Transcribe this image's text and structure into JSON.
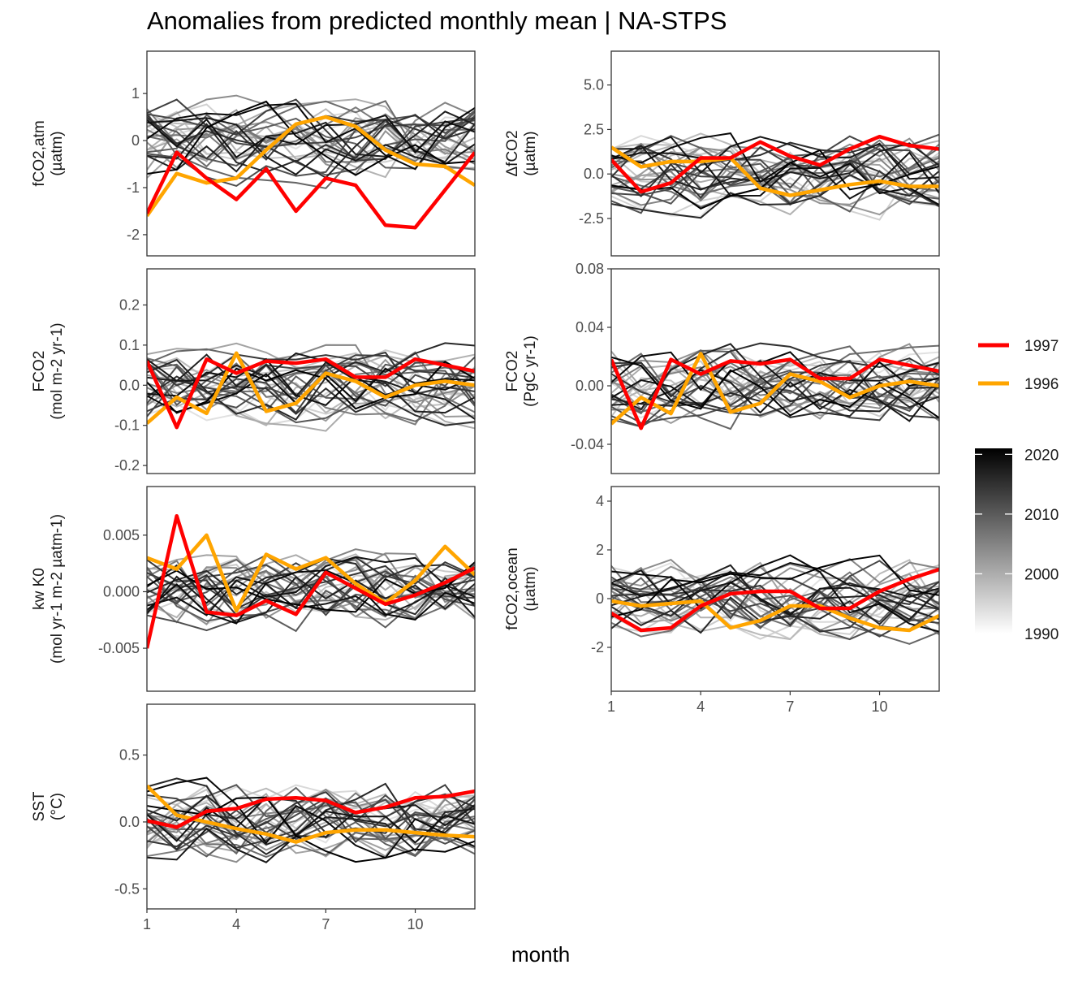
{
  "chart_data": {
    "title": "Anomalies from predicted monthly mean | NA-STPS",
    "xlabel": "month",
    "x_ticks": [
      1,
      4,
      7,
      10
    ],
    "xlim": [
      1,
      12
    ],
    "legend": {
      "highlight": [
        {
          "name": "1997",
          "color": "#ff0000"
        },
        {
          "name": "1996",
          "color": "#ffa500"
        }
      ],
      "colorbar": {
        "ticks": [
          1990,
          2000,
          2010,
          2020
        ],
        "range": [
          1990,
          2021
        ],
        "low_color": "#ffffff",
        "high_color": "#000000"
      }
    },
    "panels": [
      {
        "ylabel_lines": [
          "fCO2,atm",
          "(µatm)"
        ],
        "ticks": [
          "1",
          "0",
          "-1",
          "-2"
        ],
        "tick_values": [
          1,
          0,
          -1,
          -2
        ],
        "ylim": [
          -2.45,
          1.9
        ],
        "series_1997": [
          -1.55,
          -0.25,
          -0.8,
          -1.25,
          -0.6,
          -1.5,
          -0.8,
          -0.95,
          -1.8,
          -1.85,
          -1.05,
          -0.25
        ],
        "series_1996": [
          -1.6,
          -0.7,
          -0.9,
          -0.8,
          -0.2,
          0.35,
          0.5,
          0.3,
          -0.2,
          -0.5,
          -0.55,
          -0.95
        ]
      },
      {
        "ylabel_lines": [
          "ΔfCO2",
          "(µatm)"
        ],
        "ticks": [
          "5.0",
          "2.5",
          "0.0",
          "-2.5"
        ],
        "tick_values": [
          5,
          2.5,
          0,
          -2.5
        ],
        "ylim": [
          -4.6,
          6.9
        ],
        "series_1997": [
          0.8,
          -1.0,
          -0.5,
          0.9,
          0.9,
          1.8,
          1.0,
          0.5,
          1.4,
          2.1,
          1.6,
          1.4
        ],
        "series_1996": [
          1.5,
          0.4,
          0.7,
          0.7,
          0.9,
          -0.8,
          -1.2,
          -0.9,
          -0.6,
          -0.4,
          -0.7,
          -0.7
        ]
      },
      {
        "ylabel_lines": [
          "FCO2",
          "(mol m-2 yr-1)"
        ],
        "ticks": [
          "0.2",
          "0.1",
          "0.0",
          "-0.1",
          "-0.2"
        ],
        "tick_values": [
          0.2,
          0.1,
          0,
          -0.1,
          -0.2
        ],
        "ylim": [
          -0.22,
          0.29
        ],
        "series_1997": [
          0.06,
          -0.105,
          0.065,
          0.03,
          0.06,
          0.055,
          0.065,
          0.02,
          0.02,
          0.065,
          0.05,
          0.035
        ],
        "series_1996": [
          -0.095,
          -0.03,
          -0.07,
          0.08,
          -0.065,
          -0.045,
          0.03,
          0.01,
          -0.03,
          0.0,
          0.01,
          0.0
        ]
      },
      {
        "ylabel_lines": [
          "FCO2",
          "(PgC yr-1)"
        ],
        "ticks": [
          "0.08",
          "0.04",
          "0.00",
          "-0.04"
        ],
        "tick_values": [
          0.08,
          0.04,
          0,
          -0.04
        ],
        "ylim": [
          -0.06,
          0.08
        ],
        "series_1997": [
          0.018,
          -0.029,
          0.018,
          0.008,
          0.017,
          0.015,
          0.018,
          0.005,
          0.005,
          0.018,
          0.014,
          0.01
        ],
        "series_1996": [
          -0.026,
          -0.008,
          -0.019,
          0.022,
          -0.018,
          -0.012,
          0.008,
          0.003,
          -0.008,
          0.0,
          0.003,
          0.0
        ]
      },
      {
        "ylabel_lines": [
          "kw K0",
          "(mol yr-1 m-2 µatm-1)"
        ],
        "ticks": [
          "0.005",
          "0.000",
          "-0.005"
        ],
        "tick_values": [
          0.005,
          0,
          -0.005
        ],
        "ylim": [
          -0.0088,
          0.0093
        ],
        "series_1997": [
          -0.005,
          0.0067,
          -0.0018,
          -0.0021,
          -0.0008,
          -0.002,
          0.0017,
          0.0003,
          -0.0011,
          -0.0003,
          0.0008,
          0.0021
        ],
        "series_1996": [
          0.003,
          0.002,
          0.005,
          -0.0017,
          0.0033,
          0.002,
          0.003,
          0.0007,
          -0.001,
          0.001,
          0.004,
          0.0015
        ]
      },
      {
        "ylabel_lines": [
          "fCO2,ocean",
          "(µatm)"
        ],
        "ticks": [
          "4",
          "2",
          "0",
          "-2"
        ],
        "tick_values": [
          4,
          2,
          0,
          -2
        ],
        "ylim": [
          -3.8,
          4.6
        ],
        "series_1997": [
          -0.6,
          -1.3,
          -1.2,
          -0.3,
          0.2,
          0.3,
          0.3,
          -0.4,
          -0.4,
          0.3,
          0.8,
          1.2
        ],
        "series_1996": [
          -0.1,
          -0.3,
          -0.2,
          -0.1,
          -1.2,
          -0.9,
          -0.3,
          -0.3,
          -0.8,
          -1.2,
          -1.3,
          -0.7
        ]
      },
      {
        "ylabel_lines": [
          "SST",
          "(°C)"
        ],
        "ticks": [
          "0.5",
          "0.0",
          "-0.5"
        ],
        "tick_values": [
          0.5,
          0,
          -0.5
        ],
        "ylim": [
          -0.65,
          0.88
        ],
        "series_1997": [
          0.01,
          -0.04,
          0.08,
          0.1,
          0.17,
          0.18,
          0.16,
          0.07,
          0.11,
          0.18,
          0.19,
          0.23
        ],
        "series_1996": [
          0.27,
          0.05,
          0.0,
          -0.05,
          -0.09,
          -0.15,
          -0.08,
          -0.06,
          -0.06,
          -0.08,
          -0.1,
          -0.11
        ]
      }
    ]
  }
}
